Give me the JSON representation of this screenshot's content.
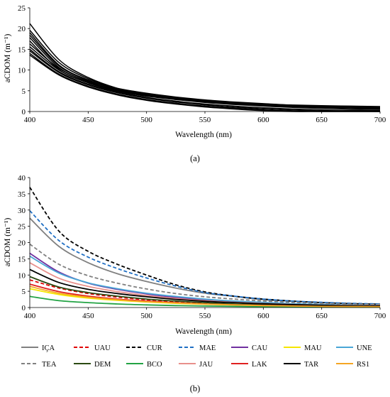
{
  "chart_data": [
    {
      "panel": "a",
      "type": "line",
      "caption": "(a)",
      "title": "",
      "xlabel": "Wavelength (nm)",
      "ylabel": "aCDOM (m⁻¹)",
      "xlim": [
        400,
        700
      ],
      "ylim": [
        0,
        25
      ],
      "xticks": [
        400,
        450,
        500,
        550,
        600,
        650,
        700
      ],
      "yticks": [
        0,
        5,
        10,
        15,
        20,
        25
      ],
      "grid": false,
      "legend": "none",
      "line_style": "solid-black",
      "x": [
        400,
        425,
        450,
        475,
        500,
        525,
        550,
        575,
        600,
        625,
        650,
        675,
        700
      ],
      "series": [
        {
          "values": [
            21.2,
            12.5,
            8.2,
            5.6,
            4.1,
            3.2,
            2.6,
            2.1,
            1.8,
            1.55,
            1.4,
            1.3,
            1.2
          ]
        },
        {
          "values": [
            19.6,
            11.8,
            7.9,
            5.5,
            4.1,
            3.2,
            2.6,
            2.1,
            1.7,
            1.4,
            1.2,
            1.05,
            0.95
          ]
        },
        {
          "values": [
            19.0,
            11.2,
            7.6,
            5.3,
            3.9,
            3.0,
            2.4,
            1.95,
            1.6,
            1.3,
            1.1,
            0.95,
            0.85
          ]
        },
        {
          "values": [
            18.4,
            11.0,
            7.5,
            5.4,
            4.2,
            3.3,
            2.7,
            2.2,
            1.8,
            1.5,
            1.25,
            1.1,
            1.0
          ]
        },
        {
          "values": [
            17.8,
            10.6,
            7.2,
            5.2,
            4.0,
            3.1,
            2.5,
            2.0,
            1.6,
            1.3,
            1.1,
            0.9,
            0.8
          ]
        },
        {
          "values": [
            17.0,
            10.1,
            6.9,
            4.9,
            3.7,
            2.9,
            2.3,
            1.85,
            1.5,
            1.2,
            1.0,
            0.85,
            0.75
          ]
        },
        {
          "values": [
            16.3,
            10.4,
            7.3,
            5.6,
            4.4,
            3.5,
            2.8,
            2.3,
            1.9,
            1.5,
            1.2,
            0.9,
            0.6
          ]
        },
        {
          "values": [
            15.6,
            10.0,
            7.0,
            5.1,
            3.8,
            2.9,
            2.2,
            1.7,
            1.3,
            1.0,
            0.75,
            0.6,
            0.5
          ]
        },
        {
          "values": [
            15.0,
            9.6,
            6.6,
            4.7,
            3.4,
            2.5,
            1.8,
            1.3,
            0.9,
            0.6,
            0.4,
            0.3,
            0.2
          ]
        },
        {
          "values": [
            14.6,
            9.4,
            6.4,
            4.5,
            3.2,
            2.3,
            1.6,
            1.05,
            0.65,
            0.35,
            0.15,
            0.05,
            0.0
          ]
        },
        {
          "values": [
            14.0,
            9.0,
            6.1,
            4.2,
            2.9,
            2.0,
            1.3,
            0.8,
            0.4,
            0.1,
            0.0,
            0.0,
            0.0
          ]
        },
        {
          "values": [
            13.6,
            8.8,
            5.9,
            4.0,
            2.7,
            1.8,
            1.1,
            0.6,
            0.2,
            0.0,
            0.0,
            0.0,
            0.0
          ]
        }
      ]
    },
    {
      "panel": "b",
      "type": "line",
      "caption": "(b)",
      "title": "",
      "xlabel": "Wavelength (nm)",
      "ylabel": "aCDOM (m⁻¹)",
      "xlim": [
        400,
        700
      ],
      "ylim": [
        0,
        40
      ],
      "xticks": [
        400,
        450,
        500,
        550,
        600,
        650,
        700
      ],
      "yticks": [
        0,
        5,
        10,
        15,
        20,
        25,
        30,
        35,
        40
      ],
      "grid": false,
      "legend": "bottom",
      "x": [
        400,
        425,
        450,
        475,
        500,
        525,
        550,
        575,
        600,
        625,
        650,
        675,
        700
      ],
      "series": [
        {
          "name": "IÇA",
          "color": "#808080",
          "dash": false,
          "values": [
            27.5,
            18.8,
            13.8,
            10.4,
            8.0,
            6.0,
            4.4,
            3.4,
            2.4,
            1.9,
            1.5,
            1.2,
            1.0
          ]
        },
        {
          "name": "UAU",
          "color": "#e00000",
          "dash": true,
          "values": [
            8.5,
            6.0,
            4.3,
            3.2,
            2.4,
            1.8,
            1.3,
            1.0,
            0.75,
            0.55,
            0.4,
            0.3,
            0.2
          ]
        },
        {
          "name": "CUR",
          "color": "#000000",
          "dash": true,
          "values": [
            37.0,
            23.5,
            17.3,
            13.3,
            10.0,
            7.0,
            4.8,
            3.5,
            2.6,
            2.0,
            1.5,
            1.2,
            1.0
          ]
        },
        {
          "name": "MAE",
          "color": "#1f6fc4",
          "dash": true,
          "values": [
            29.8,
            20.6,
            15.5,
            12.0,
            9.1,
            6.6,
            4.6,
            3.5,
            2.6,
            2.0,
            1.6,
            1.3,
            1.1
          ]
        },
        {
          "name": "CAU",
          "color": "#7030a0",
          "dash": false,
          "values": [
            16.7,
            10.9,
            7.5,
            5.6,
            4.2,
            3.1,
            2.3,
            1.8,
            1.4,
            1.1,
            0.9,
            0.7,
            0.6
          ]
        },
        {
          "name": "MAU",
          "color": "#f5e600",
          "dash": false,
          "values": [
            5.8,
            4.0,
            2.9,
            2.2,
            1.7,
            1.3,
            1.0,
            0.8,
            0.6,
            0.45,
            0.35,
            0.28,
            0.2
          ]
        },
        {
          "name": "UNE",
          "color": "#4aa6d6",
          "dash": false,
          "values": [
            15.8,
            10.6,
            7.6,
            5.8,
            4.4,
            3.4,
            2.6,
            2.0,
            1.6,
            1.2,
            0.95,
            0.75,
            0.6
          ]
        },
        {
          "name": "TEA",
          "color": "#808080",
          "dash": true,
          "values": [
            19.5,
            13.3,
            9.8,
            7.5,
            5.7,
            4.3,
            3.3,
            2.6,
            2.0,
            1.6,
            1.3,
            1.05,
            0.9
          ]
        },
        {
          "name": "DEM",
          "color": "#2b4a12",
          "dash": false,
          "values": [
            9.5,
            6.3,
            4.6,
            3.5,
            2.6,
            2.0,
            1.5,
            1.1,
            0.85,
            0.65,
            0.5,
            0.4,
            0.3
          ]
        },
        {
          "name": "BCO",
          "color": "#22a344",
          "dash": false,
          "values": [
            3.4,
            2.1,
            1.5,
            1.1,
            0.8,
            0.6,
            0.45,
            0.35,
            0.25,
            0.2,
            0.15,
            0.1,
            0.1
          ]
        },
        {
          "name": "JAU",
          "color": "#e8908c",
          "dash": false,
          "values": [
            13.8,
            9.0,
            6.5,
            4.9,
            3.7,
            2.8,
            2.1,
            1.6,
            1.25,
            0.95,
            0.75,
            0.6,
            0.5
          ]
        },
        {
          "name": "LAK",
          "color": "#e02020",
          "dash": false,
          "values": [
            7.2,
            4.9,
            3.5,
            2.6,
            2.0,
            1.5,
            1.1,
            0.85,
            0.65,
            0.5,
            0.4,
            0.35,
            0.3
          ]
        },
        {
          "name": "TAR",
          "color": "#000000",
          "dash": false,
          "values": [
            11.7,
            7.7,
            5.6,
            4.3,
            3.3,
            2.5,
            1.9,
            1.5,
            1.15,
            0.9,
            0.7,
            0.55,
            0.45
          ]
        },
        {
          "name": "RS1",
          "color": "#f5a623",
          "dash": false,
          "values": [
            6.5,
            4.4,
            3.2,
            2.4,
            1.8,
            1.4,
            1.05,
            0.8,
            0.6,
            0.45,
            0.35,
            0.3,
            0.25
          ]
        }
      ]
    }
  ]
}
